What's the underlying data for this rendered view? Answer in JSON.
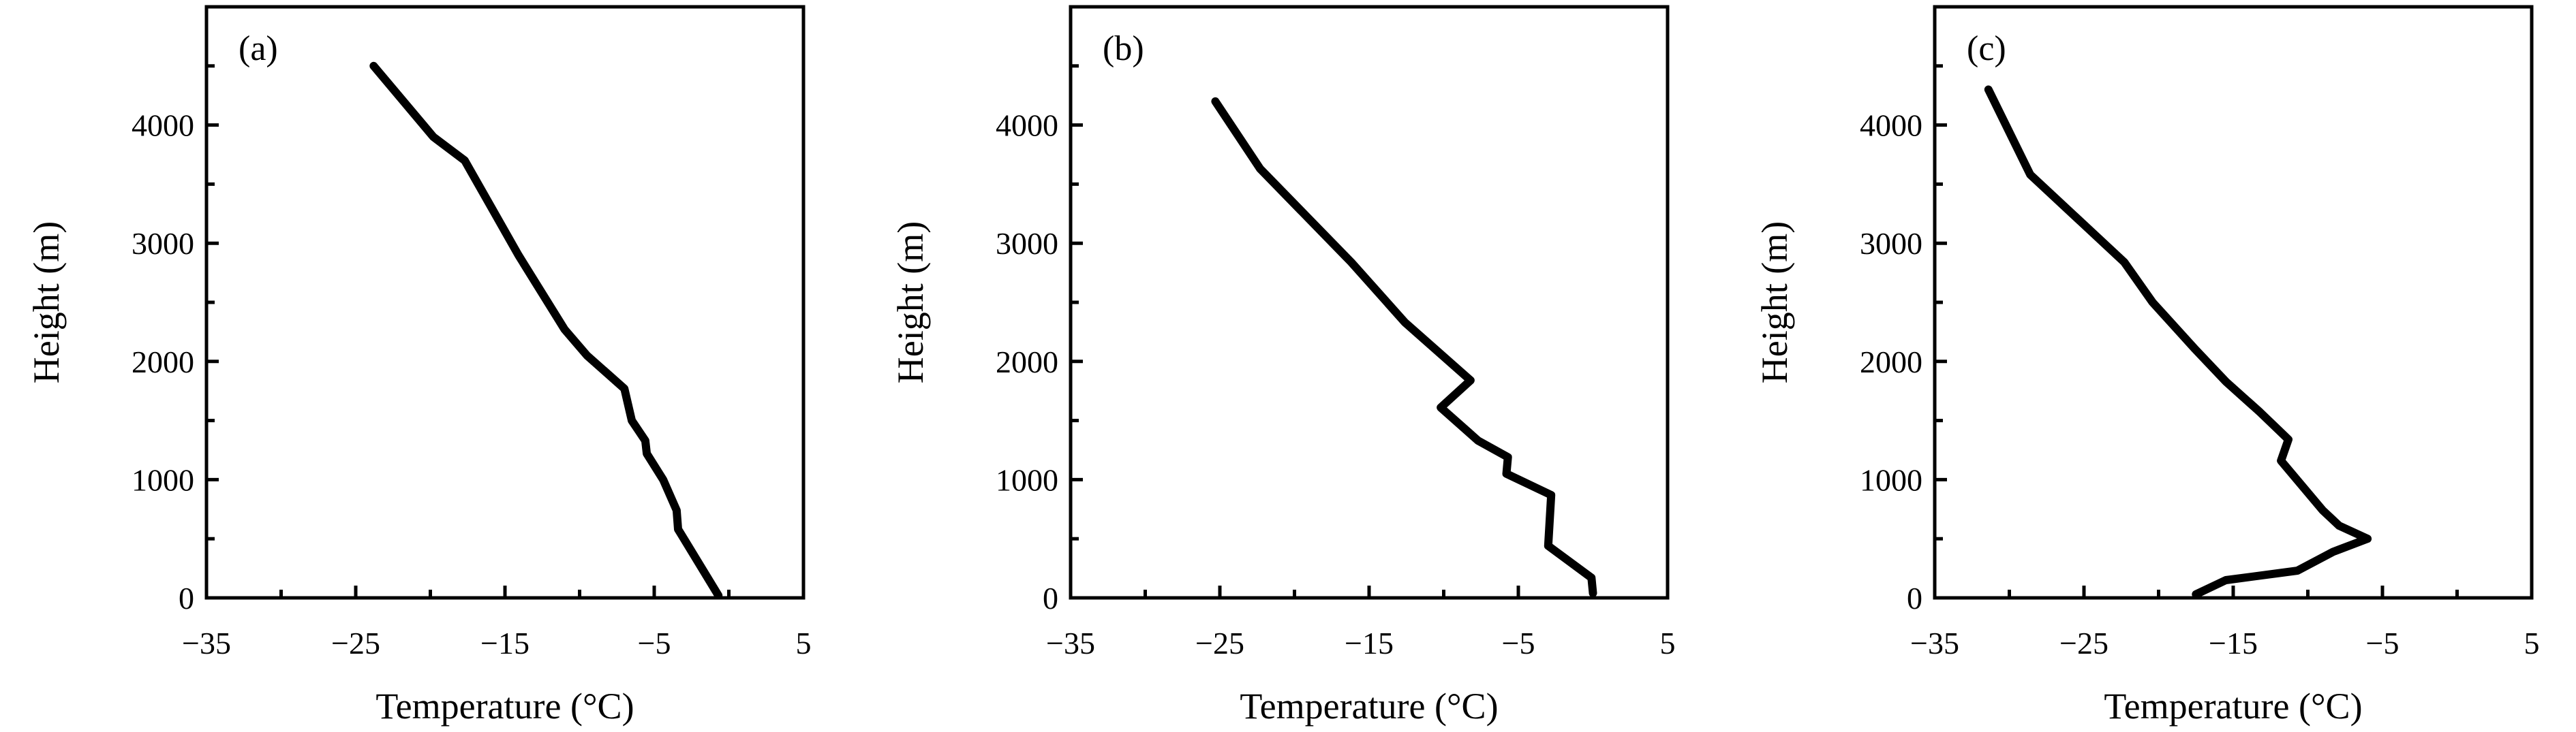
{
  "chart_data": [
    {
      "type": "line",
      "panel_label": "(a)",
      "xlabel": "Temperature (°C)",
      "ylabel": "Height (m)",
      "xlim": [
        -35,
        5
      ],
      "ylim": [
        0,
        5000
      ],
      "xticks": [
        -35,
        -25,
        -15,
        -5,
        5
      ],
      "yticks": [
        0,
        1000,
        2000,
        3000,
        4000
      ],
      "grid": false,
      "series": [
        {
          "x": [
            -23.8,
            -19.8,
            -17.7,
            -15.9,
            -14.1,
            -11.0,
            -9.5,
            -7.0,
            -6.5,
            -5.6,
            -5.5,
            -4.4,
            -3.5,
            -3.4,
            -3.3,
            -0.7
          ],
          "y": [
            4500,
            3900,
            3700,
            3300,
            2900,
            2270,
            2050,
            1770,
            1500,
            1330,
            1220,
            1000,
            740,
            580,
            560,
            20
          ]
        }
      ]
    },
    {
      "type": "line",
      "panel_label": "(b)",
      "xlabel": "Temperature (°C)",
      "ylabel": "Height (m)",
      "xlim": [
        -35,
        5
      ],
      "ylim": [
        0,
        5000
      ],
      "xticks": [
        -35,
        -25,
        -15,
        -5,
        5
      ],
      "yticks": [
        0,
        1000,
        2000,
        3000,
        4000
      ],
      "grid": false,
      "series": [
        {
          "x": [
            -25.3,
            -22.3,
            -16.2,
            -12.6,
            -8.2,
            -10.2,
            -7.7,
            -5.7,
            -5.8,
            -2.8,
            -3.0,
            -0.1,
            0.0
          ],
          "y": [
            4200,
            3630,
            2840,
            2330,
            1840,
            1610,
            1330,
            1190,
            1050,
            870,
            440,
            170,
            40
          ]
        }
      ]
    },
    {
      "type": "line",
      "panel_label": "(c)",
      "xlabel": "Temperature (°C)",
      "ylabel": "Height (m)",
      "xlim": [
        -35,
        5
      ],
      "ylim": [
        0,
        5000
      ],
      "xticks": [
        -35,
        -25,
        -15,
        -5,
        5
      ],
      "yticks": [
        0,
        1000,
        2000,
        3000,
        4000
      ],
      "grid": false,
      "series": [
        {
          "x": [
            -31.4,
            -28.6,
            -22.3,
            -20.4,
            -17.6,
            -15.5,
            -13.2,
            -11.3,
            -11.8,
            -9.0,
            -7.9,
            -6.0,
            -8.3,
            -10.7,
            -15.5,
            -17.5
          ],
          "y": [
            4300,
            3580,
            2840,
            2500,
            2110,
            1830,
            1570,
            1340,
            1160,
            740,
            610,
            500,
            390,
            230,
            150,
            30
          ]
        }
      ]
    }
  ]
}
